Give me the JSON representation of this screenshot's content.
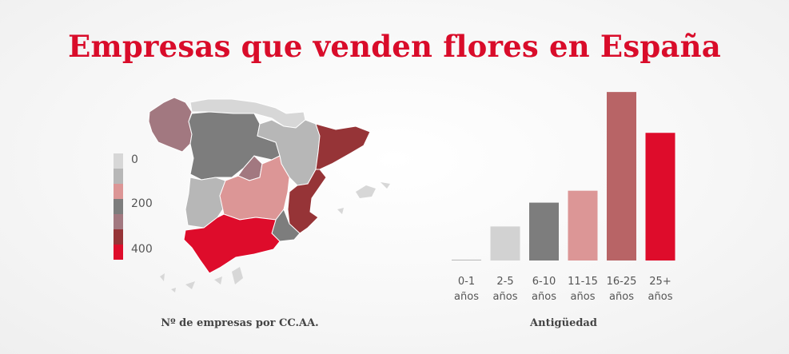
{
  "title": "Empresas que venden flores en España",
  "map": {
    "caption": "Nº de empresas por CC.AA.",
    "legend": {
      "labels": [
        "0",
        "200",
        "400"
      ],
      "swatches": [
        "#d7d7d7",
        "#b7b7b7",
        "#dc9696",
        "#7d7d7d",
        "#a27880",
        "#963437",
        "#de0c2b"
      ]
    }
  },
  "chart_data": {
    "type": "bar",
    "title": "",
    "xlabel": "Antigüedad",
    "ylabel": "",
    "categories": [
      {
        "line1": "0-1",
        "line2": "años"
      },
      {
        "line1": "2-5",
        "line2": "años"
      },
      {
        "line1": "6-10",
        "line2": "años"
      },
      {
        "line1": "11-15",
        "line2": "años"
      },
      {
        "line1": "16-25",
        "line2": "años"
      },
      {
        "line1": "25+",
        "line2": "años"
      }
    ],
    "values": [
      0.5,
      20,
      34,
      41,
      99,
      75
    ],
    "ylim": [
      0,
      100
    ],
    "colors": [
      "#bbbbbb",
      "#d2d2d2",
      "#7d7d7d",
      "#dc9696",
      "#b86466",
      "#de0c2b"
    ],
    "grid": false,
    "legend": "none"
  }
}
